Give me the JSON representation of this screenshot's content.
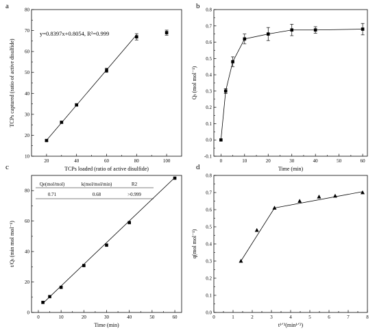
{
  "chart_data": [
    {
      "panel": "a",
      "type": "scatter",
      "xlabel": "TCPs loaded (ratio of active disulfide)",
      "ylabel": "TCPs captured (ratio of active disulfide)",
      "xlim": [
        10,
        110
      ],
      "ylim": [
        10,
        80
      ],
      "xticks": [
        20,
        40,
        60,
        80,
        100
      ],
      "yticks": [
        10,
        20,
        30,
        40,
        50,
        60,
        70,
        80
      ],
      "annotation": "y=0.8397x+0.8054, R²=0.999",
      "x": [
        20,
        30,
        40,
        60,
        80,
        100
      ],
      "y": [
        17.5,
        26.2,
        34.5,
        51.0,
        67.0,
        69.0
      ],
      "yerr": [
        0.4,
        0.5,
        0.6,
        1.0,
        1.5,
        1.2
      ],
      "fit": {
        "slope": 0.8397,
        "intercept": 0.8054,
        "x": [
          20,
          80
        ]
      }
    },
    {
      "panel": "b",
      "type": "line",
      "xlabel": "Time (min)",
      "ylabel": "Qₜ (mol mol⁻¹)",
      "xlim": [
        -3,
        62
      ],
      "ylim": [
        -0.1,
        0.8
      ],
      "xticks": [
        0,
        10,
        20,
        30,
        40,
        50,
        60
      ],
      "yticks": [
        -0.1,
        0.0,
        0.1,
        0.2,
        0.3,
        0.4,
        0.5,
        0.6,
        0.7,
        0.8
      ],
      "x": [
        0,
        2,
        5,
        10,
        20,
        30,
        40,
        60
      ],
      "y": [
        0.0,
        0.3,
        0.48,
        0.62,
        0.65,
        0.675,
        0.675,
        0.68
      ],
      "yerr": [
        0.0,
        0.015,
        0.03,
        0.03,
        0.04,
        0.035,
        0.02,
        0.035
      ]
    },
    {
      "panel": "c",
      "type": "scatter",
      "xlabel": "Time (min)",
      "ylabel": "t/Qₜ (min mol mol⁻¹)",
      "xlim": [
        -3,
        63
      ],
      "ylim": [
        0,
        90
      ],
      "xticks": [
        0,
        10,
        20,
        30,
        40,
        50,
        60
      ],
      "yticks": [
        0,
        20,
        40,
        60,
        80
      ],
      "x": [
        2,
        5,
        10,
        20,
        30,
        40,
        60
      ],
      "y": [
        6.6,
        10.4,
        16.5,
        30.8,
        44.2,
        59.0,
        88.2
      ],
      "fit": {
        "x": [
          2,
          60
        ],
        "y": [
          6.0,
          88.6
        ]
      },
      "table": {
        "headers": [
          "Qe(mol/mol)",
          "k(mol/mol/min)",
          "R2"
        ],
        "rows": [
          [
            "0.71",
            "0.68",
            ">0.999"
          ]
        ]
      }
    },
    {
      "panel": "d",
      "type": "line",
      "xlabel": "t¹ᐟ²(min¹ᐟ²)",
      "ylabel": "q(mol mol⁻¹)",
      "xlim": [
        0,
        8
      ],
      "ylim": [
        0,
        0.8
      ],
      "xticks": [
        0,
        0.5,
        1,
        1.5,
        2,
        2.5,
        3,
        3.5,
        4,
        4.5,
        5,
        5.5,
        6,
        6.5,
        7,
        7.5,
        8
      ],
      "xticklabels": [
        "0",
        "",
        "1",
        "",
        "2",
        "",
        "3",
        "",
        "4",
        "",
        "5",
        "",
        "6",
        "",
        "7",
        "",
        "8"
      ],
      "yticks": [
        0,
        0.1,
        0.2,
        0.3,
        0.4,
        0.5,
        0.6,
        0.7,
        0.8
      ],
      "x": [
        1.41,
        2.24,
        3.16,
        4.47,
        5.48,
        6.32,
        7.75
      ],
      "y": [
        0.3,
        0.48,
        0.61,
        0.65,
        0.675,
        0.68,
        0.7
      ],
      "lines": [
        {
          "x": [
            1.41,
            3.16
          ],
          "y": [
            0.3,
            0.61
          ]
        },
        {
          "x": [
            3.16,
            7.75
          ],
          "y": [
            0.61,
            0.705
          ]
        }
      ]
    }
  ]
}
